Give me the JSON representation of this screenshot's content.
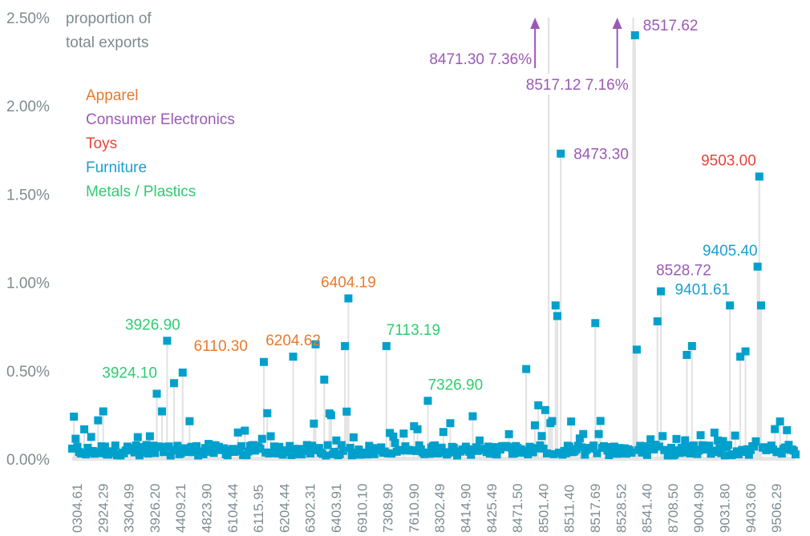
{
  "chart_data": {
    "type": "scatter",
    "title": "",
    "ylabel": "proportion of total exports",
    "ylabel_lines": [
      "proportion of",
      "total exports"
    ],
    "xlabel": "",
    "ylim": [
      0,
      2.5
    ],
    "y_unit": "%",
    "y_ticks": [
      "0.00%",
      "0.50%",
      "1.00%",
      "1.50%",
      "2.00%",
      "2.50%"
    ],
    "y_tick_values": [
      0,
      0.5,
      1.0,
      1.5,
      2.0,
      2.5
    ],
    "x_tick_labels": [
      "0304.61",
      "2924.29",
      "3304.99",
      "3926.20",
      "4409.21",
      "4823.90",
      "6104.44",
      "6115.95",
      "6204.44",
      "6302.31",
      "6403.91",
      "6910.10",
      "7308.90",
      "7610.90",
      "8302.49",
      "8414.90",
      "8425.49",
      "8471.50",
      "8501.40",
      "8511.40",
      "8517.69",
      "8528.52",
      "8541.40",
      "8708.50",
      "9004.90",
      "9031.80",
      "9403.60",
      "9506.29"
    ],
    "grid": false,
    "marker_color": "#00a0cc",
    "stem_color": "#e2e2e2",
    "legend": [
      {
        "label": "Apparel",
        "color": "#e87a2c"
      },
      {
        "label": "Consumer Electronics",
        "color": "#9b59b6"
      },
      {
        "label": "Toys",
        "color": "#e8443a"
      },
      {
        "label": "Furniture",
        "color": "#1a9fd0"
      },
      {
        "label": "Metals / Plastics",
        "color": "#2ecc71"
      }
    ],
    "legend_position": "top-left",
    "n_points": 420,
    "highlighted_points": [
      {
        "code": "3924.10",
        "value": 0.27,
        "category": "Metals / Plastics",
        "index": 52
      },
      {
        "code": "3926.90",
        "value": 0.67,
        "category": "Metals / Plastics",
        "index": 55
      },
      {
        "code": "6110.30",
        "value": 0.55,
        "category": "Apparel",
        "index": 111
      },
      {
        "code": "6204.62",
        "value": 0.58,
        "category": "Apparel",
        "index": 128
      },
      {
        "code": "6404.19",
        "value": 0.91,
        "category": "Apparel",
        "index": 160
      },
      {
        "code": "7113.19",
        "value": 0.64,
        "category": "Metals / Plastics",
        "index": 182
      },
      {
        "code": "7326.90",
        "value": 0.33,
        "category": "Metals / Plastics",
        "index": 206
      },
      {
        "code": "8471.30",
        "value": 7.36,
        "category": "Consumer Electronics",
        "index": 276,
        "off_chart": true,
        "label": "8471.30 7.36%"
      },
      {
        "code": "8473.30",
        "value": 1.73,
        "category": "Consumer Electronics",
        "index": 283
      },
      {
        "code": "8517.12",
        "value": 7.16,
        "category": "Consumer Electronics",
        "index": 325,
        "off_chart": true,
        "label": "8517.12 7.16%"
      },
      {
        "code": "8517.62",
        "value": 2.4,
        "category": "Consumer Electronics",
        "index": 326
      },
      {
        "code": "8528.72",
        "value": 0.95,
        "category": "Consumer Electronics",
        "index": 341
      },
      {
        "code": "9401.61",
        "value": 0.87,
        "category": "Furniture",
        "index": 381
      },
      {
        "code": "9405.40",
        "value": 1.09,
        "category": "Furniture",
        "index": 397
      },
      {
        "code": "9503.00",
        "value": 1.6,
        "category": "Toys",
        "index": 398
      }
    ],
    "other_notable_values": [
      {
        "index": 263,
        "value": 0.51
      },
      {
        "index": 280,
        "value": 0.87
      },
      {
        "index": 281,
        "value": 0.81
      },
      {
        "index": 303,
        "value": 0.77
      },
      {
        "index": 327,
        "value": 0.62
      },
      {
        "index": 339,
        "value": 0.78
      },
      {
        "index": 359,
        "value": 0.64
      },
      {
        "index": 356,
        "value": 0.59
      },
      {
        "index": 387,
        "value": 0.58
      },
      {
        "index": 390,
        "value": 0.61
      },
      {
        "index": 399,
        "value": 0.87
      },
      {
        "index": 141,
        "value": 0.65
      },
      {
        "index": 158,
        "value": 0.64
      },
      {
        "index": 146,
        "value": 0.45
      },
      {
        "index": 64,
        "value": 0.49
      },
      {
        "index": 59,
        "value": 0.43
      },
      {
        "index": 49,
        "value": 0.37
      },
      {
        "index": 18,
        "value": 0.27
      }
    ]
  }
}
